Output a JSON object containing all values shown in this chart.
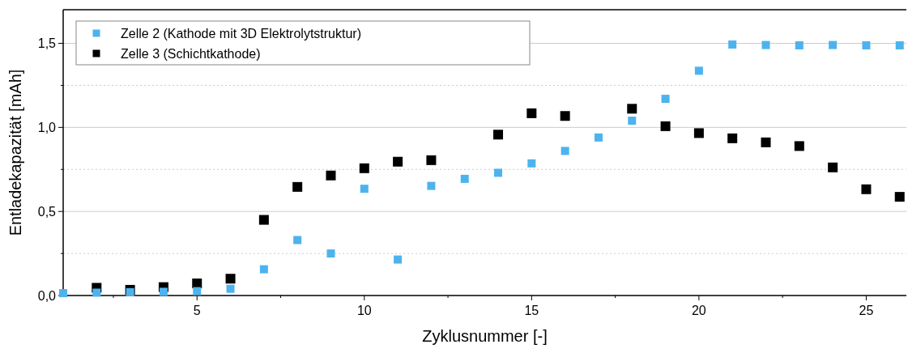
{
  "chart_data": {
    "type": "scatter",
    "xlabel": "Zyklusnummer [-]",
    "ylabel": "Entladekapazität [mAh]",
    "x": [
      1,
      2,
      3,
      4,
      5,
      6,
      7,
      8,
      9,
      10,
      11,
      12,
      13,
      14,
      15,
      16,
      17,
      18,
      19,
      20,
      21,
      22,
      23,
      24,
      25,
      26
    ],
    "series": [
      {
        "name": "Zelle 2 (Kathode mit 3D Elektrolytstruktur)",
        "color": "#4db3ee",
        "values": [
          0.014,
          0.017,
          0.02,
          0.022,
          0.026,
          0.04,
          0.156,
          0.33,
          0.25,
          0.635,
          0.214,
          0.652,
          0.694,
          0.73,
          0.786,
          0.86,
          0.94,
          1.04,
          1.17,
          1.337,
          1.493,
          1.49,
          1.488,
          1.49,
          1.488,
          1.488
        ]
      },
      {
        "name": "Zelle 3 (Schichtkathode)",
        "color": "#000000",
        "values": [
          null,
          0.046,
          0.034,
          0.05,
          0.072,
          0.1,
          0.45,
          0.646,
          0.714,
          0.757,
          0.796,
          0.805,
          null,
          0.957,
          1.084,
          1.068,
          null,
          1.111,
          1.007,
          0.966,
          0.935,
          0.911,
          0.889,
          0.762,
          0.632,
          0.587
        ]
      }
    ],
    "xlim": [
      1,
      26.2
    ],
    "ylim": [
      0,
      1.7
    ],
    "xticks": [
      {
        "value": 2.5,
        "label": null
      },
      5,
      {
        "value": 7.5,
        "label": null
      },
      10,
      {
        "value": 12.5,
        "label": null
      },
      15,
      {
        "value": 17.5,
        "label": null
      },
      20,
      {
        "value": 22.5,
        "label": null
      },
      25
    ],
    "yticks": [
      {
        "value": 0,
        "label": "0,0"
      },
      {
        "value": 0.25,
        "label": null
      },
      {
        "value": 0.5,
        "label": "0,5"
      },
      {
        "value": 0.75,
        "label": null
      },
      {
        "value": 1,
        "label": "1,0"
      },
      {
        "value": 1.25,
        "label": null
      },
      {
        "value": 1.5,
        "label": "1,5"
      }
    ],
    "grid": "y",
    "legend": "top left",
    "marker": "square"
  }
}
